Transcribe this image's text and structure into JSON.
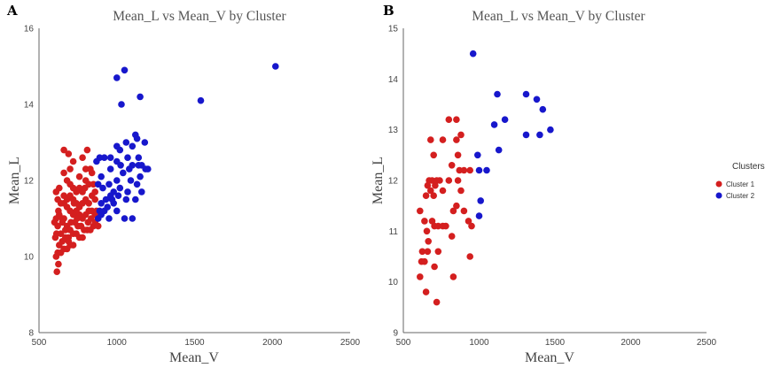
{
  "colors": {
    "cluster1": "#d41f1f",
    "cluster2": "#1717cc"
  },
  "legend": {
    "title": "Clusters",
    "entries": [
      "Cluster 1",
      "Cluster 2"
    ]
  },
  "chart_data": [
    {
      "panel": "A",
      "type": "scatter",
      "title": "Mean_L vs Mean_V by Cluster",
      "xlabel": "Mean_V",
      "ylabel": "Mean_L",
      "xlim": [
        500,
        2500
      ],
      "ylim": [
        8,
        16
      ],
      "xticks": [
        500,
        1000,
        1500,
        2000,
        2500
      ],
      "yticks": [
        8,
        10,
        12,
        14,
        16
      ],
      "series": [
        {
          "name": "Cluster 1",
          "points": [
            [
              615,
              9.6
            ],
            [
              625,
              9.8
            ],
            [
              610,
              10.0
            ],
            [
              620,
              10.1
            ],
            [
              640,
              10.1
            ],
            [
              630,
              10.3
            ],
            [
              650,
              10.4
            ],
            [
              605,
              10.5
            ],
            [
              612,
              10.6
            ],
            [
              660,
              10.2
            ],
            [
              680,
              10.2
            ],
            [
              700,
              10.3
            ],
            [
              720,
              10.3
            ],
            [
              690,
              10.5
            ],
            [
              670,
              10.5
            ],
            [
              640,
              10.6
            ],
            [
              620,
              10.8
            ],
            [
              650,
              10.9
            ],
            [
              610,
              11.0
            ],
            [
              630,
              11.1
            ],
            [
              660,
              11.0
            ],
            [
              680,
              10.8
            ],
            [
              700,
              10.7
            ],
            [
              720,
              10.6
            ],
            [
              740,
              10.6
            ],
            [
              760,
              10.5
            ],
            [
              780,
              10.5
            ],
            [
              730,
              10.9
            ],
            [
              750,
              10.8
            ],
            [
              770,
              10.8
            ],
            [
              790,
              10.7
            ],
            [
              810,
              10.7
            ],
            [
              830,
              10.7
            ],
            [
              850,
              10.8
            ],
            [
              860,
              10.9
            ],
            [
              880,
              10.8
            ],
            [
              880,
              11.0
            ],
            [
              860,
              11.1
            ],
            [
              840,
              11.2
            ],
            [
              820,
              11.2
            ],
            [
              800,
              11.1
            ],
            [
              780,
              11.0
            ],
            [
              760,
              11.1
            ],
            [
              740,
              11.2
            ],
            [
              720,
              11.1
            ],
            [
              700,
              11.2
            ],
            [
              680,
              11.3
            ],
            [
              660,
              11.4
            ],
            [
              640,
              11.4
            ],
            [
              620,
              11.5
            ],
            [
              610,
              11.7
            ],
            [
              630,
              11.8
            ],
            [
              660,
              11.6
            ],
            [
              680,
              11.5
            ],
            [
              700,
              11.6
            ],
            [
              720,
              11.5
            ],
            [
              740,
              11.4
            ],
            [
              760,
              11.3
            ],
            [
              780,
              11.4
            ],
            [
              800,
              11.5
            ],
            [
              820,
              11.4
            ],
            [
              840,
              11.6
            ],
            [
              860,
              11.5
            ],
            [
              780,
              11.7
            ],
            [
              760,
              11.8
            ],
            [
              740,
              11.7
            ],
            [
              720,
              11.8
            ],
            [
              700,
              11.9
            ],
            [
              680,
              12.0
            ],
            [
              660,
              12.2
            ],
            [
              700,
              12.3
            ],
            [
              760,
              12.1
            ],
            [
              800,
              12.0
            ],
            [
              820,
              11.9
            ],
            [
              840,
              12.2
            ],
            [
              800,
              12.3
            ],
            [
              720,
              12.5
            ],
            [
              690,
              12.7
            ],
            [
              660,
              12.8
            ],
            [
              780,
              12.6
            ],
            [
              810,
              12.8
            ],
            [
              830,
              12.3
            ],
            [
              850,
              11.9
            ],
            [
              860,
              11.7
            ],
            [
              650,
              11.0
            ],
            [
              670,
              10.7
            ],
            [
              690,
              10.4
            ],
            [
              600,
              10.9
            ],
            [
              625,
              11.2
            ],
            [
              705,
              10.9
            ],
            [
              725,
              11.4
            ],
            [
              745,
              11.0
            ],
            [
              795,
              11.8
            ],
            [
              815,
              10.9
            ],
            [
              835,
              11.0
            ],
            [
              870,
              11.2
            ]
          ]
        },
        {
          "name": "Cluster 2",
          "points": [
            [
              1000,
              14.7
            ],
            [
              1050,
              14.9
            ],
            [
              1030,
              14.0
            ],
            [
              1150,
              14.2
            ],
            [
              1540,
              14.1
            ],
            [
              2020,
              15.0
            ],
            [
              1120,
              13.2
            ],
            [
              1060,
              13.0
            ],
            [
              1100,
              12.9
            ],
            [
              1000,
              12.9
            ],
            [
              1020,
              12.8
            ],
            [
              1130,
              13.1
            ],
            [
              1180,
              13.0
            ],
            [
              960,
              12.6
            ],
            [
              1000,
              12.5
            ],
            [
              920,
              12.6
            ],
            [
              890,
              12.6
            ],
            [
              870,
              12.5
            ],
            [
              960,
              12.3
            ],
            [
              1100,
              12.4
            ],
            [
              1140,
              12.4
            ],
            [
              1160,
              12.4
            ],
            [
              1200,
              12.3
            ],
            [
              1040,
              12.2
            ],
            [
              1000,
              12.0
            ],
            [
              1080,
              12.3
            ],
            [
              900,
              12.1
            ],
            [
              880,
              11.9
            ],
            [
              910,
              11.8
            ],
            [
              950,
              11.9
            ],
            [
              980,
              11.7
            ],
            [
              1020,
              11.8
            ],
            [
              1070,
              11.7
            ],
            [
              1130,
              11.9
            ],
            [
              1160,
              11.7
            ],
            [
              1120,
              11.5
            ],
            [
              1060,
              11.5
            ],
            [
              1010,
              11.6
            ],
            [
              960,
              11.6
            ],
            [
              930,
              11.5
            ],
            [
              900,
              11.4
            ],
            [
              890,
              11.2
            ],
            [
              920,
              11.2
            ],
            [
              950,
              11.0
            ],
            [
              980,
              11.4
            ],
            [
              1000,
              11.2
            ],
            [
              1050,
              11.0
            ],
            [
              1100,
              11.0
            ],
            [
              880,
              11.0
            ],
            [
              900,
              11.1
            ],
            [
              940,
              11.3
            ],
            [
              970,
              11.5
            ],
            [
              1150,
              12.1
            ],
            [
              1090,
              12.0
            ],
            [
              1185,
              12.3
            ],
            [
              1025,
              12.4
            ],
            [
              1070,
              12.6
            ],
            [
              1140,
              12.6
            ]
          ]
        }
      ]
    },
    {
      "panel": "B",
      "type": "scatter",
      "title": "Mean_L vs Mean_V by Cluster",
      "xlabel": "Mean_V",
      "ylabel": "Mean_L",
      "xlim": [
        500,
        2500
      ],
      "ylim": [
        9,
        15
      ],
      "xticks": [
        500,
        1000,
        1500,
        2000,
        2500
      ],
      "yticks": [
        9,
        10,
        11,
        12,
        13,
        14,
        15
      ],
      "series": [
        {
          "name": "Cluster 1",
          "points": [
            [
              610,
              10.1
            ],
            [
              620,
              10.4
            ],
            [
              640,
              10.4
            ],
            [
              625,
              10.6
            ],
            [
              660,
              10.6
            ],
            [
              650,
              9.8
            ],
            [
              720,
              9.6
            ],
            [
              705,
              10.3
            ],
            [
              730,
              10.6
            ],
            [
              610,
              11.4
            ],
            [
              640,
              11.2
            ],
            [
              655,
              11.0
            ],
            [
              665,
              10.8
            ],
            [
              690,
              11.2
            ],
            [
              705,
              11.1
            ],
            [
              730,
              11.1
            ],
            [
              760,
              11.1
            ],
            [
              780,
              11.1
            ],
            [
              650,
              11.7
            ],
            [
              660,
              11.9
            ],
            [
              680,
              11.8
            ],
            [
              670,
              12.0
            ],
            [
              690,
              12.0
            ],
            [
              710,
              11.9
            ],
            [
              700,
              11.7
            ],
            [
              720,
              12.0
            ],
            [
              740,
              12.0
            ],
            [
              760,
              11.8
            ],
            [
              800,
              12.0
            ],
            [
              820,
              12.3
            ],
            [
              860,
              12.0
            ],
            [
              870,
              12.2
            ],
            [
              900,
              12.2
            ],
            [
              940,
              12.2
            ],
            [
              860,
              12.5
            ],
            [
              850,
              12.8
            ],
            [
              880,
              12.9
            ],
            [
              850,
              13.2
            ],
            [
              800,
              13.2
            ],
            [
              760,
              12.8
            ],
            [
              680,
              12.8
            ],
            [
              700,
              12.5
            ],
            [
              830,
              11.4
            ],
            [
              850,
              11.5
            ],
            [
              880,
              11.8
            ],
            [
              900,
              11.4
            ],
            [
              930,
              11.2
            ],
            [
              950,
              11.1
            ],
            [
              940,
              10.5
            ],
            [
              830,
              10.1
            ],
            [
              820,
              10.9
            ]
          ]
        },
        {
          "name": "Cluster 2",
          "points": [
            [
              960,
              14.5
            ],
            [
              1120,
              13.7
            ],
            [
              1310,
              13.7
            ],
            [
              1380,
              13.6
            ],
            [
              1420,
              13.4
            ],
            [
              1470,
              13.0
            ],
            [
              1400,
              12.9
            ],
            [
              1310,
              12.9
            ],
            [
              1170,
              13.2
            ],
            [
              1100,
              13.1
            ],
            [
              1130,
              12.6
            ],
            [
              990,
              12.5
            ],
            [
              1000,
              12.2
            ],
            [
              1050,
              12.2
            ],
            [
              1010,
              11.6
            ],
            [
              1000,
              11.3
            ]
          ]
        }
      ]
    }
  ]
}
